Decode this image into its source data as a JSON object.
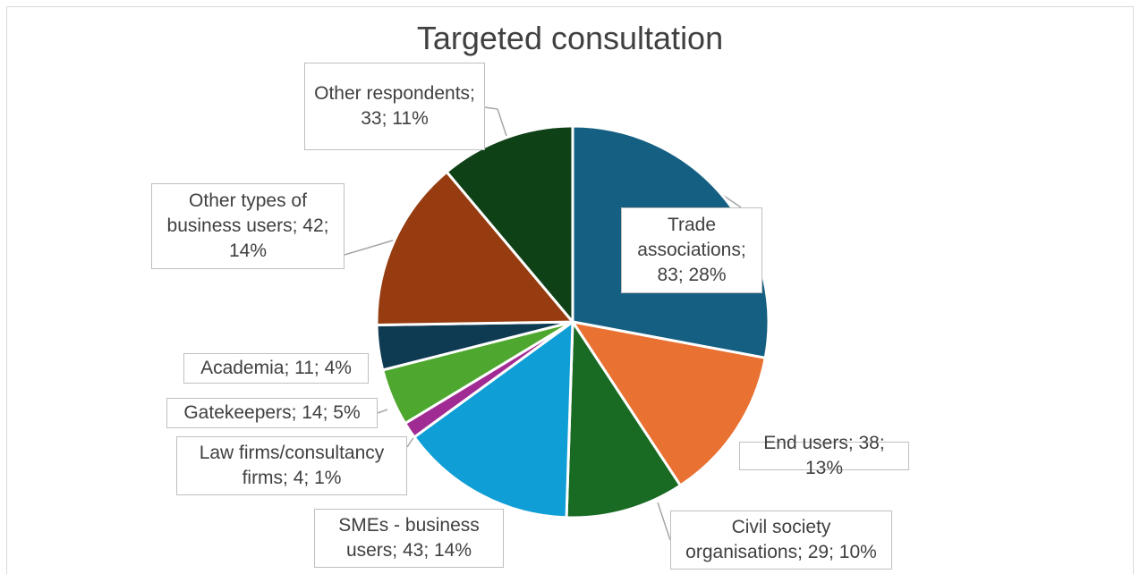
{
  "chart_data": {
    "type": "pie",
    "title": "Targeted consultation",
    "slices": [
      {
        "name": "Trade associations",
        "value": 83,
        "percent": "28%",
        "color": "#156082",
        "label": "Trade associations; 83; 28%"
      },
      {
        "name": "End users",
        "value": 38,
        "percent": "13%",
        "color": "#E97132",
        "label": "End users; 38; 13%"
      },
      {
        "name": "Civil society organisations",
        "value": 29,
        "percent": "10%",
        "color": "#196B24",
        "label": "Civil society organisations; 29; 10%"
      },
      {
        "name": "SMEs - business users",
        "value": 43,
        "percent": "14%",
        "color": "#0F9ED5",
        "label": "SMEs - business users; 43; 14%"
      },
      {
        "name": "Law firms/consultancy firms",
        "value": 4,
        "percent": "1%",
        "color": "#A02B93",
        "label": "Law firms/consultancy firms; 4; 1%"
      },
      {
        "name": "Gatekeepers",
        "value": 14,
        "percent": "5%",
        "color": "#4EA72E",
        "label": "Gatekeepers; 14; 5%"
      },
      {
        "name": "Academia",
        "value": 11,
        "percent": "4%",
        "color": "#0E3A52",
        "label": "Academia; 11; 4%"
      },
      {
        "name": "Other types of business users",
        "value": 42,
        "percent": "14%",
        "color": "#963C10",
        "label": "Other types of business users; 42; 14%"
      },
      {
        "name": "Other respondents",
        "value": 33,
        "percent": "11%",
        "color": "#0F4117",
        "label": "Other respondents; 33; 11%"
      }
    ],
    "start_angle": "12 o'clock",
    "direction": "clockwise",
    "legend": "none",
    "data_labels": "callouts"
  }
}
